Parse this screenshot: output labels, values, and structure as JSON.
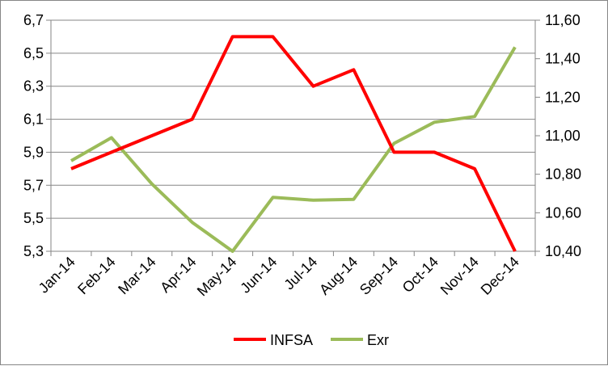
{
  "chart_data": {
    "type": "line",
    "title": "",
    "xlabel": "",
    "ylabel": "",
    "categories": [
      "Jan-14",
      "Feb-14",
      "Mar-14",
      "Apr-14",
      "May-14",
      "Jun-14",
      "Jul-14",
      "Aug-14",
      "Sep-14",
      "Oct-14",
      "Nov-14",
      "Dec-14"
    ],
    "series": [
      {
        "name": "INFSA",
        "axis": "left",
        "color": "#ff0000",
        "values": [
          5.8,
          5.9,
          6.0,
          6.1,
          6.6,
          6.6,
          6.3,
          6.4,
          5.9,
          5.9,
          5.8,
          5.3
        ]
      },
      {
        "name": "Exr",
        "axis": "right",
        "color": "#9bbb59",
        "values": [
          10.87,
          10.99,
          10.75,
          10.55,
          10.4,
          10.68,
          10.665,
          10.67,
          10.96,
          11.07,
          11.1,
          11.46
        ]
      }
    ],
    "y_left": {
      "ylim": [
        5.3,
        6.7
      ],
      "ticks": [
        5.3,
        5.5,
        5.7,
        5.9,
        6.1,
        6.3,
        6.5,
        6.7
      ],
      "tick_labels": [
        "5,3",
        "5,5",
        "5,7",
        "5,9",
        "6,1",
        "6,3",
        "6,5",
        "6,7"
      ]
    },
    "y_right": {
      "ylim": [
        10.4,
        11.6
      ],
      "ticks": [
        10.4,
        10.6,
        10.8,
        11.0,
        11.2,
        11.4,
        11.6
      ],
      "tick_labels": [
        "10,40",
        "10,60",
        "10,80",
        "11,00",
        "11,20",
        "11,40",
        "11,60"
      ]
    },
    "grid": true,
    "legend_position": "bottom"
  }
}
